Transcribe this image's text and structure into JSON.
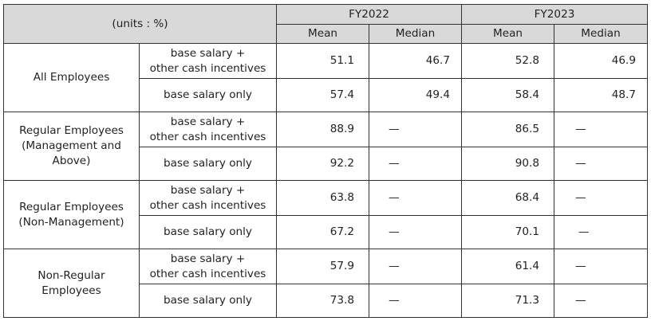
{
  "header": {
    "units_label": "(units : %)",
    "fy2022": "FY2022",
    "fy2023": "FY2023",
    "mean": "Mean",
    "median": "Median"
  },
  "groups": [
    {
      "label": "All Employees",
      "rows": [
        {
          "type": "base salary +\nother cash incentives",
          "fy22_mean": "51.1",
          "fy22_median": "46.7",
          "fy23_mean": "52.8",
          "fy23_median": "46.9"
        },
        {
          "type": "base salary only",
          "fy22_mean": "57.4",
          "fy22_median": "49.4",
          "fy23_mean": "58.4",
          "fy23_median": "48.7"
        }
      ]
    },
    {
      "label": "Regular Employees\n(Management and\nAbove)",
      "rows": [
        {
          "type": "base salary +\nother cash incentives",
          "fy22_mean": "88.9",
          "fy22_median": "—",
          "fy23_mean": "86.5",
          "fy23_median": "—"
        },
        {
          "type": "base salary only",
          "fy22_mean": "92.2",
          "fy22_median": "—",
          "fy23_mean": "90.8",
          "fy23_median": "—"
        }
      ]
    },
    {
      "label": "Regular Employees\n(Non-Management)",
      "rows": [
        {
          "type": "base salary +\nother cash incentives",
          "fy22_mean": "63.8",
          "fy22_median": "—",
          "fy23_mean": "68.4",
          "fy23_median": "—"
        },
        {
          "type": "base salary only",
          "fy22_mean": "67.2",
          "fy22_median": "—",
          "fy23_mean": "70.1",
          "fy23_median": "—"
        }
      ]
    },
    {
      "label": "Non-Regular\nEmployees",
      "rows": [
        {
          "type": "base salary +\nother cash incentives",
          "fy22_mean": "57.9",
          "fy22_median": "—",
          "fy23_mean": "61.4",
          "fy23_median": "—"
        },
        {
          "type": "base salary only",
          "fy22_mean": "73.8",
          "fy22_median": "—",
          "fy23_mean": "71.3",
          "fy23_median": "—"
        }
      ]
    }
  ]
}
